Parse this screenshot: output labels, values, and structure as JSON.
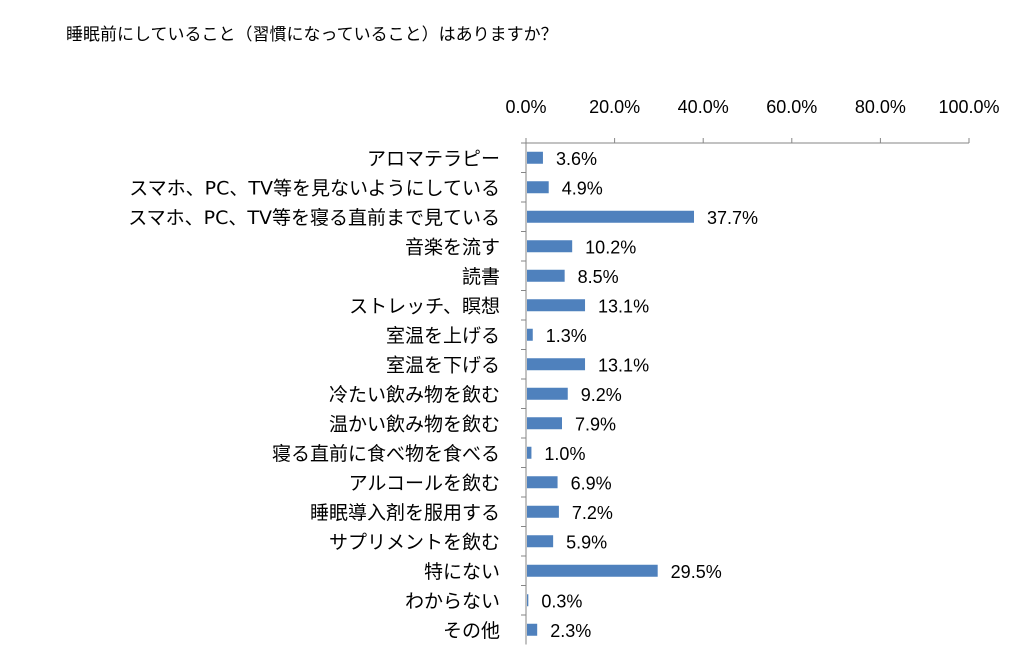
{
  "question": "睡眠前にしていること（習慣になっていること）はありますか？",
  "chart_data": {
    "type": "bar",
    "orientation": "horizontal",
    "title": "睡眠前にしていること（習慣になっていること）はありますか？",
    "xlim": [
      0,
      100
    ],
    "x_ticks": [
      "0.0%",
      "20.0%",
      "40.0%",
      "60.0%",
      "80.0%",
      "100.0%"
    ],
    "x_axis_position": "top",
    "grid": false,
    "bar_color": "#4F81BD",
    "categories": [
      "アロマテラピー",
      "スマホ、PC、TV等を見ないようにしている",
      "スマホ、PC、TV等を寝る直前まで見ている",
      "音楽を流す",
      "読書",
      "ストレッチ、瞑想",
      "室温を上げる",
      "室温を下げる",
      "冷たい飲み物を飲む",
      "温かい飲み物を飲む",
      "寝る直前に食べ物を食べる",
      "アルコールを飲む",
      "睡眠導入剤を服用する",
      "サプリメントを飲む",
      "特にない",
      "わからない",
      "その他"
    ],
    "values": [
      3.6,
      4.9,
      37.7,
      10.2,
      8.5,
      13.1,
      1.3,
      13.1,
      9.2,
      7.9,
      1.0,
      6.9,
      7.2,
      5.9,
      29.5,
      0.3,
      2.3
    ],
    "data_labels": [
      "3.6%",
      "4.9%",
      "37.7%",
      "10.2%",
      "8.5%",
      "13.1%",
      "1.3%",
      "13.1%",
      "9.2%",
      "7.9%",
      "1.0%",
      "6.9%",
      "7.2%",
      "5.9%",
      "29.5%",
      "0.3%",
      "2.3%"
    ]
  }
}
